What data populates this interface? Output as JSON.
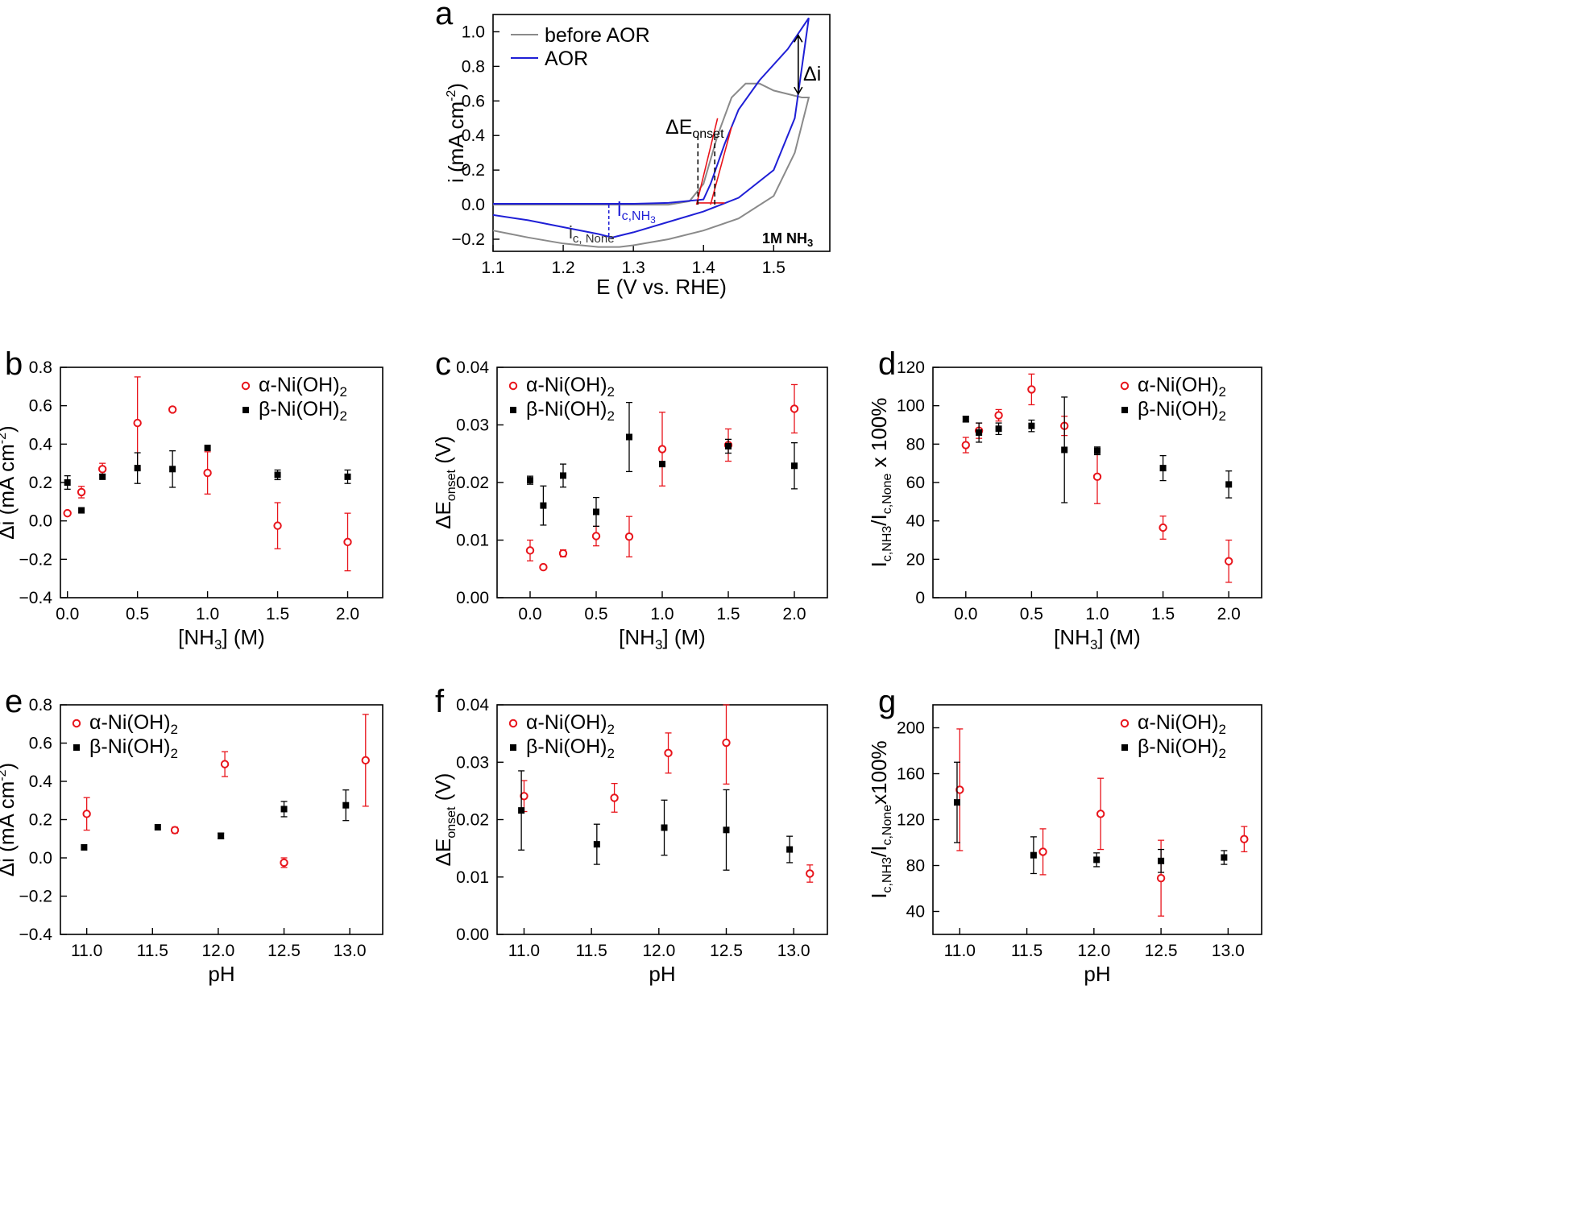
{
  "colors": {
    "alpha": "#e8141b",
    "beta": "#000000",
    "before": "#8a8a8a",
    "aor": "#1f1fd6",
    "fit": "#e8141b",
    "axis": "#000000"
  },
  "panel_a": {
    "label": "a",
    "legend": [
      "before AOR",
      "AOR"
    ],
    "ann_delta_i": "Δi",
    "ann_delta_e": "ΔE",
    "ann_delta_e_sub": "onset",
    "ann_ic_nh3": "i",
    "ann_ic_nh3_sub": "c,NH",
    "ann_ic_nh3_sub2": "3",
    "ann_ic_none": "i",
    "ann_ic_none_sub": "c, None",
    "corner": "1M NH",
    "corner_sub": "3",
    "xlabel": "E (V vs. RHE)",
    "ylabel": "i (mA cm",
    "ylabel_sup": "-2",
    "ylabel_end": ")"
  },
  "chart_data": [
    {
      "panel": "a",
      "type": "line",
      "xlim": [
        1.1,
        1.58
      ],
      "ylim": [
        -0.27,
        1.1
      ],
      "xticks": [
        1.1,
        1.2,
        1.3,
        1.4,
        1.5
      ],
      "yticks": [
        -0.2,
        0.0,
        0.2,
        0.4,
        0.6,
        0.8,
        1.0
      ],
      "series": [
        {
          "name": "before AOR",
          "color": "before",
          "x": [
            1.1,
            1.15,
            1.2,
            1.25,
            1.28,
            1.3,
            1.35,
            1.4,
            1.45,
            1.5,
            1.53,
            1.55,
            1.54,
            1.5,
            1.48,
            1.46,
            1.44,
            1.42,
            1.4,
            1.38,
            1.35,
            1.3,
            1.25,
            1.2,
            1.15,
            1.1
          ],
          "y": [
            -0.15,
            -0.19,
            -0.225,
            -0.245,
            -0.245,
            -0.235,
            -0.2,
            -0.15,
            -0.08,
            0.05,
            0.3,
            0.62,
            0.62,
            0.66,
            0.7,
            0.7,
            0.62,
            0.4,
            0.12,
            0.02,
            0.0,
            0.0,
            0.0,
            0.0,
            0.0,
            0.0
          ]
        },
        {
          "name": "AOR",
          "color": "aor",
          "x": [
            1.1,
            1.15,
            1.2,
            1.25,
            1.27,
            1.3,
            1.35,
            1.4,
            1.45,
            1.5,
            1.53,
            1.55,
            1.52,
            1.48,
            1.45,
            1.43,
            1.41,
            1.4,
            1.35,
            1.3,
            1.25,
            1.2,
            1.15,
            1.1
          ],
          "y": [
            -0.06,
            -0.09,
            -0.13,
            -0.17,
            -0.19,
            -0.16,
            -0.1,
            -0.04,
            0.04,
            0.2,
            0.5,
            1.08,
            0.9,
            0.72,
            0.55,
            0.35,
            0.12,
            0.03,
            0.01,
            0.005,
            0.005,
            0.005,
            0.005,
            0.005
          ]
        }
      ]
    },
    {
      "panel": "b",
      "type": "scatter",
      "xlabel": "[NH3] (M)",
      "ylabel": "Δi (mA cm-2)",
      "xlim": [
        -0.05,
        2.25
      ],
      "ylim": [
        -0.4,
        0.8
      ],
      "xticks": [
        0.0,
        0.5,
        1.0,
        1.5,
        2.0
      ],
      "yticks": [
        -0.4,
        -0.2,
        0.0,
        0.2,
        0.4,
        0.6,
        0.8
      ],
      "series": [
        {
          "name": "α-Ni(OH)2",
          "x": [
            0.0,
            0.1,
            0.25,
            0.5,
            0.75,
            1.0,
            1.5,
            2.0
          ],
          "y": [
            0.04,
            0.15,
            0.27,
            0.51,
            0.58,
            0.25,
            -0.025,
            -0.11
          ],
          "err": [
            0.0,
            0.03,
            0.03,
            0.24,
            0.0,
            0.11,
            0.12,
            0.15
          ]
        },
        {
          "name": "β-Ni(OH)2",
          "x": [
            0.0,
            0.1,
            0.25,
            0.5,
            0.75,
            1.0,
            1.5,
            2.0
          ],
          "y": [
            0.2,
            0.055,
            0.23,
            0.275,
            0.27,
            0.38,
            0.24,
            0.23
          ],
          "err": [
            0.035,
            0.0,
            0.0,
            0.08,
            0.095,
            0.0,
            0.025,
            0.035
          ]
        }
      ]
    },
    {
      "panel": "c",
      "type": "scatter",
      "xlabel": "[NH3] (M)",
      "ylabel": "ΔEonset (V)",
      "xlim": [
        -0.25,
        2.25
      ],
      "ylim": [
        0.0,
        0.04
      ],
      "xticks": [
        0.0,
        0.5,
        1.0,
        1.5,
        2.0
      ],
      "yticks": [
        0.0,
        0.01,
        0.02,
        0.03,
        0.04
      ],
      "series": [
        {
          "name": "α-Ni(OH)2",
          "x": [
            0.0,
            0.1,
            0.25,
            0.5,
            0.75,
            1.0,
            1.5,
            2.0
          ],
          "y": [
            0.0082,
            0.0053,
            0.0077,
            0.0107,
            0.0106,
            0.0258,
            0.0265,
            0.0328
          ],
          "err": [
            0.0018,
            0.0,
            0.0006,
            0.0017,
            0.0035,
            0.0064,
            0.0028,
            0.0042
          ]
        },
        {
          "name": "β-Ni(OH)2",
          "x": [
            0.0,
            0.1,
            0.25,
            0.5,
            0.75,
            1.0,
            1.5,
            2.0
          ],
          "y": [
            0.0204,
            0.016,
            0.0212,
            0.0149,
            0.0279,
            0.0232,
            0.0263,
            0.0229
          ],
          "err": [
            0.0007,
            0.0034,
            0.002,
            0.0025,
            0.006,
            0.0,
            0.0012,
            0.004
          ]
        }
      ]
    },
    {
      "panel": "d",
      "type": "scatter",
      "xlabel": "[NH3] (M)",
      "ylabel": "Ic,NH3/Ic,None x 100%",
      "xlim": [
        -0.25,
        2.25
      ],
      "ylim": [
        0,
        120
      ],
      "xticks": [
        0.0,
        0.5,
        1.0,
        1.5,
        2.0
      ],
      "yticks": [
        0,
        20,
        40,
        60,
        80,
        100,
        120
      ],
      "series": [
        {
          "name": "α-Ni(OH)2",
          "x": [
            0.0,
            0.1,
            0.25,
            0.5,
            0.75,
            1.0,
            1.5,
            2.0
          ],
          "y": [
            79.5,
            87,
            95,
            108.5,
            89.5,
            63,
            36.5,
            19
          ],
          "err": [
            4,
            4,
            3,
            8,
            5,
            14,
            6,
            11
          ]
        },
        {
          "name": "β-Ni(OH)2",
          "x": [
            0.0,
            0.1,
            0.25,
            0.5,
            0.75,
            1.0,
            1.5,
            2.0
          ],
          "y": [
            93,
            86,
            88,
            89.5,
            77,
            76.5,
            67.5,
            59
          ],
          "err": [
            1.5,
            5,
            3,
            3,
            27.5,
            2,
            6.5,
            7
          ]
        }
      ]
    },
    {
      "panel": "e",
      "type": "scatter",
      "xlabel": "pH",
      "ylabel": "Δi (mA cm-2)",
      "xlim": [
        10.8,
        13.25
      ],
      "ylim": [
        -0.4,
        0.8
      ],
      "xticks": [
        11.0,
        11.5,
        12.0,
        12.5,
        13.0
      ],
      "yticks": [
        -0.4,
        -0.2,
        0.0,
        0.2,
        0.4,
        0.6,
        0.8
      ],
      "series": [
        {
          "name": "α-Ni(OH)2",
          "x": [
            11.0,
            11.67,
            12.05,
            12.5,
            13.12
          ],
          "y": [
            0.23,
            0.145,
            0.49,
            -0.025,
            0.51
          ],
          "err": [
            0.085,
            0.015,
            0.065,
            0.025,
            0.24
          ]
        },
        {
          "name": "β-Ni(OH)2",
          "x": [
            10.98,
            11.54,
            12.02,
            12.5,
            12.97
          ],
          "y": [
            0.055,
            0.16,
            0.115,
            0.255,
            0.275
          ],
          "err": [
            0.0,
            0.0,
            0.015,
            0.04,
            0.08
          ]
        }
      ]
    },
    {
      "panel": "f",
      "type": "scatter",
      "xlabel": "pH",
      "ylabel": "ΔEonset (V)",
      "xlim": [
        10.8,
        13.25
      ],
      "ylim": [
        0.0,
        0.04
      ],
      "xticks": [
        11.0,
        11.5,
        12.0,
        12.5,
        13.0
      ],
      "yticks": [
        0.0,
        0.01,
        0.02,
        0.03,
        0.04
      ],
      "series": [
        {
          "name": "α-Ni(OH)2",
          "x": [
            11.0,
            11.67,
            12.07,
            12.5,
            13.12
          ],
          "y": [
            0.0241,
            0.0238,
            0.0316,
            0.0334,
            0.0106
          ],
          "err": [
            0.0027,
            0.0025,
            0.0035,
            0.0072,
            0.0015
          ]
        },
        {
          "name": "β-Ni(OH)2",
          "x": [
            10.98,
            11.54,
            12.04,
            12.5,
            12.97
          ],
          "y": [
            0.0216,
            0.0157,
            0.0186,
            0.0182,
            0.0148
          ],
          "err": [
            0.0069,
            0.0035,
            0.0048,
            0.007,
            0.0023
          ]
        }
      ]
    },
    {
      "panel": "g",
      "type": "scatter",
      "xlabel": "pH",
      "ylabel": "Ic,NH3/Ic,Nonex100%",
      "xlim": [
        10.8,
        13.25
      ],
      "ylim": [
        20,
        220
      ],
      "xticks": [
        11.0,
        11.5,
        12.0,
        12.5,
        13.0
      ],
      "yticks": [
        40,
        80,
        120,
        160,
        200
      ],
      "series": [
        {
          "name": "α-Ni(OH)2",
          "x": [
            11.0,
            11.62,
            12.05,
            12.5,
            13.12
          ],
          "y": [
            146,
            92,
            125,
            69,
            103
          ],
          "err": [
            53,
            20,
            31,
            33,
            11
          ]
        },
        {
          "name": "β-Ni(OH)2",
          "x": [
            10.98,
            11.55,
            12.02,
            12.5,
            12.97
          ],
          "y": [
            135,
            89,
            85,
            84,
            87
          ],
          "err": [
            35,
            16,
            6,
            10,
            6
          ]
        }
      ]
    }
  ],
  "scatter_panels": {
    "b": {
      "label": "b",
      "legend": [
        "α-Ni(OH)",
        "β-Ni(OH)"
      ],
      "legend_sub": "2",
      "xlabel": "[NH",
      "xlabel_sub": "3",
      "xlabel_end": "] (M)",
      "ylabel": "Δi (mA cm",
      "ylabel_sup": "-2",
      "ylabel_end": ")"
    },
    "c": {
      "label": "c",
      "legend": [
        "α-Ni(OH)",
        "β-Ni(OH)"
      ],
      "legend_sub": "2",
      "xlabel": "[NH",
      "xlabel_sub": "3",
      "xlabel_end": "] (M)",
      "ylabel": "ΔE",
      "ylabel_sub": "onset",
      "ylabel_end": " (V)"
    },
    "d": {
      "label": "d",
      "legend": [
        "α-Ni(OH)",
        "β-Ni(OH)"
      ],
      "legend_sub": "2",
      "xlabel": "[NH",
      "xlabel_sub": "3",
      "xlabel_end": "] (M)",
      "ylabel": "I",
      "ylabel_sub": "c,NH3",
      "ylabel_mid": "/I",
      "ylabel_sub2": "c,None",
      "ylabel_end": " x 100%"
    },
    "e": {
      "label": "e",
      "legend": [
        "α-Ni(OH)",
        "β-Ni(OH)"
      ],
      "legend_sub": "2",
      "xlabel": "pH",
      "ylabel": "Δi (mA cm",
      "ylabel_sup": "-2",
      "ylabel_end": ")"
    },
    "f": {
      "label": "f",
      "legend": [
        "α-Ni(OH)",
        "β-Ni(OH)"
      ],
      "legend_sub": "2",
      "xlabel": "pH",
      "ylabel": "ΔE",
      "ylabel_sub": "onset",
      "ylabel_end": " (V)"
    },
    "g": {
      "label": "g",
      "legend": [
        "α-Ni(OH)",
        "β-Ni(OH)"
      ],
      "legend_sub": "2",
      "xlabel": "pH",
      "ylabel": "I",
      "ylabel_sub": "c,NH3",
      "ylabel_mid": "/I",
      "ylabel_sub2": "c,None",
      "ylabel_end": "x100%"
    }
  }
}
